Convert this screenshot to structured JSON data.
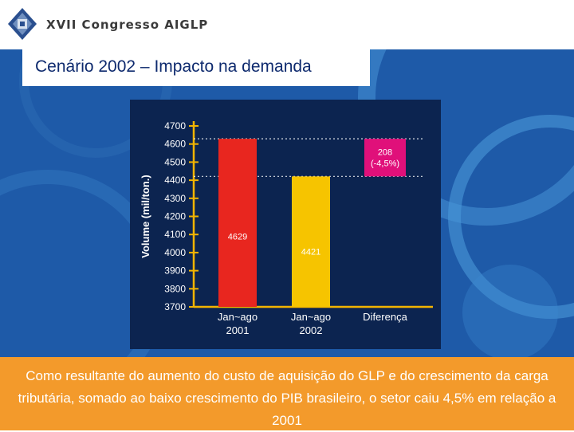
{
  "header": {
    "congress_name": "XVII Congresso AIGLP"
  },
  "slide": {
    "title": "Cenário 2002 – Impacto na demanda"
  },
  "chart_data": {
    "type": "bar",
    "ylabel": "Volume (mil/ton.)",
    "ylim": [
      3700,
      4700
    ],
    "yticks": [
      3700,
      3800,
      3900,
      4000,
      4100,
      4200,
      4300,
      4400,
      4500,
      4600,
      4700
    ],
    "categories": [
      "Jan~ago 2001",
      "Jan~ago 2002",
      "Diferença"
    ],
    "category_lines": [
      [
        "Jan~ago",
        "2001"
      ],
      [
        "Jan~ago",
        "2002"
      ],
      [
        "Diferença"
      ]
    ],
    "bars": [
      {
        "label": "4629",
        "value": 4629,
        "color": "#e8261f"
      },
      {
        "label": "4421",
        "value": 4421,
        "color": "#f6c400"
      }
    ],
    "difference": {
      "label": [
        "208",
        "(-4,5%)"
      ],
      "low": 4421,
      "high": 4629,
      "color": "#e0107a"
    },
    "reference_lines": [
      4629,
      4421
    ],
    "axis_color": "#f2b400"
  },
  "caption": {
    "text": "Como resultante do aumento do custo de aquisição do GLP e do crescimento da carga tributária, somado ao baixo crescimento do PIB brasileiro, o setor caiu 4,5% em relação a 2001"
  }
}
